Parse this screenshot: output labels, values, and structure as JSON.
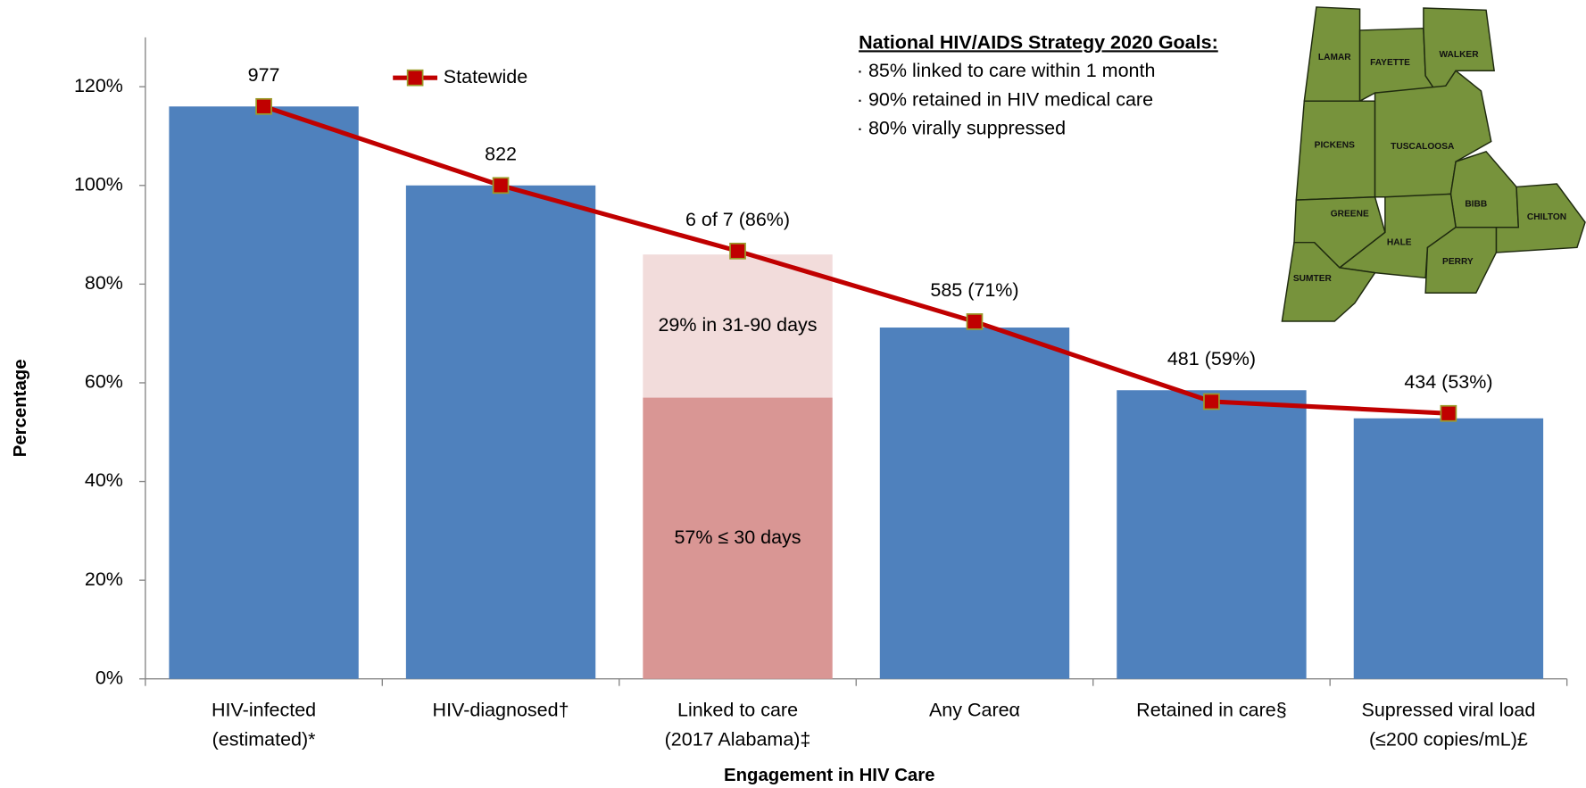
{
  "chart_data": {
    "type": "bar",
    "categories": [
      [
        "HIV-infected",
        "(estimated)*"
      ],
      [
        "HIV-diagnosed†"
      ],
      [
        "Linked to care",
        "(2017 Alabama)‡"
      ],
      [
        "Any Careα"
      ],
      [
        "Retained in care§"
      ],
      [
        "Supressed viral load",
        "(≤200 copies/mL)£"
      ]
    ],
    "series": [
      {
        "type": "bar",
        "color": "#4f81bd",
        "values": [
          116,
          100,
          null,
          71.2,
          58.5,
          52.8
        ]
      },
      {
        "type": "bar",
        "stack": true,
        "label": "57% ≤ 30 days",
        "color": "#d99694",
        "values": [
          null,
          null,
          57,
          null,
          null,
          null
        ]
      },
      {
        "type": "bar",
        "stack": true,
        "label": "29% in 31-90 days",
        "color": "#f2dcdb",
        "values": [
          null,
          null,
          29,
          null,
          null,
          null
        ]
      },
      {
        "type": "line",
        "name": "Statewide",
        "color": "#c00000",
        "marker_edge": "#9b9b2a",
        "values": [
          116,
          100,
          86.7,
          72.4,
          56.2,
          53.8
        ]
      }
    ],
    "data_labels": [
      "977",
      "822",
      "6 of 7 (86%)",
      "585 (71%)",
      "481 (59%)",
      "434 (53%)"
    ],
    "xlabel": "Engagement in HIV Care",
    "ylabel": "Percentage",
    "ylim": [
      0,
      130
    ],
    "yticks": [
      {
        "value": 0,
        "label": "0%"
      },
      {
        "value": 20,
        "label": "20%"
      },
      {
        "value": 40,
        "label": "40%"
      },
      {
        "value": 60,
        "label": "60%"
      },
      {
        "value": 80,
        "label": "80%"
      },
      {
        "value": 100,
        "label": "100%"
      },
      {
        "value": 120,
        "label": "120%"
      }
    ],
    "grid": false,
    "legend": "top-left",
    "goals": {
      "title": "National HIV/AIDS Strategy 2020 Goals:",
      "items": [
        "· 85% linked to care within 1 month",
        "· 90% retained in HIV medical care",
        "· 80% virally suppressed"
      ]
    },
    "map": {
      "color": "#77933c",
      "counties": [
        "LAMAR",
        "FAYETTE",
        "WALKER",
        "PICKENS",
        "TUSCALOOSA",
        "GREENE",
        "BIBB",
        "CHILTON",
        "HALE",
        "PERRY",
        "SUMTER"
      ]
    }
  }
}
